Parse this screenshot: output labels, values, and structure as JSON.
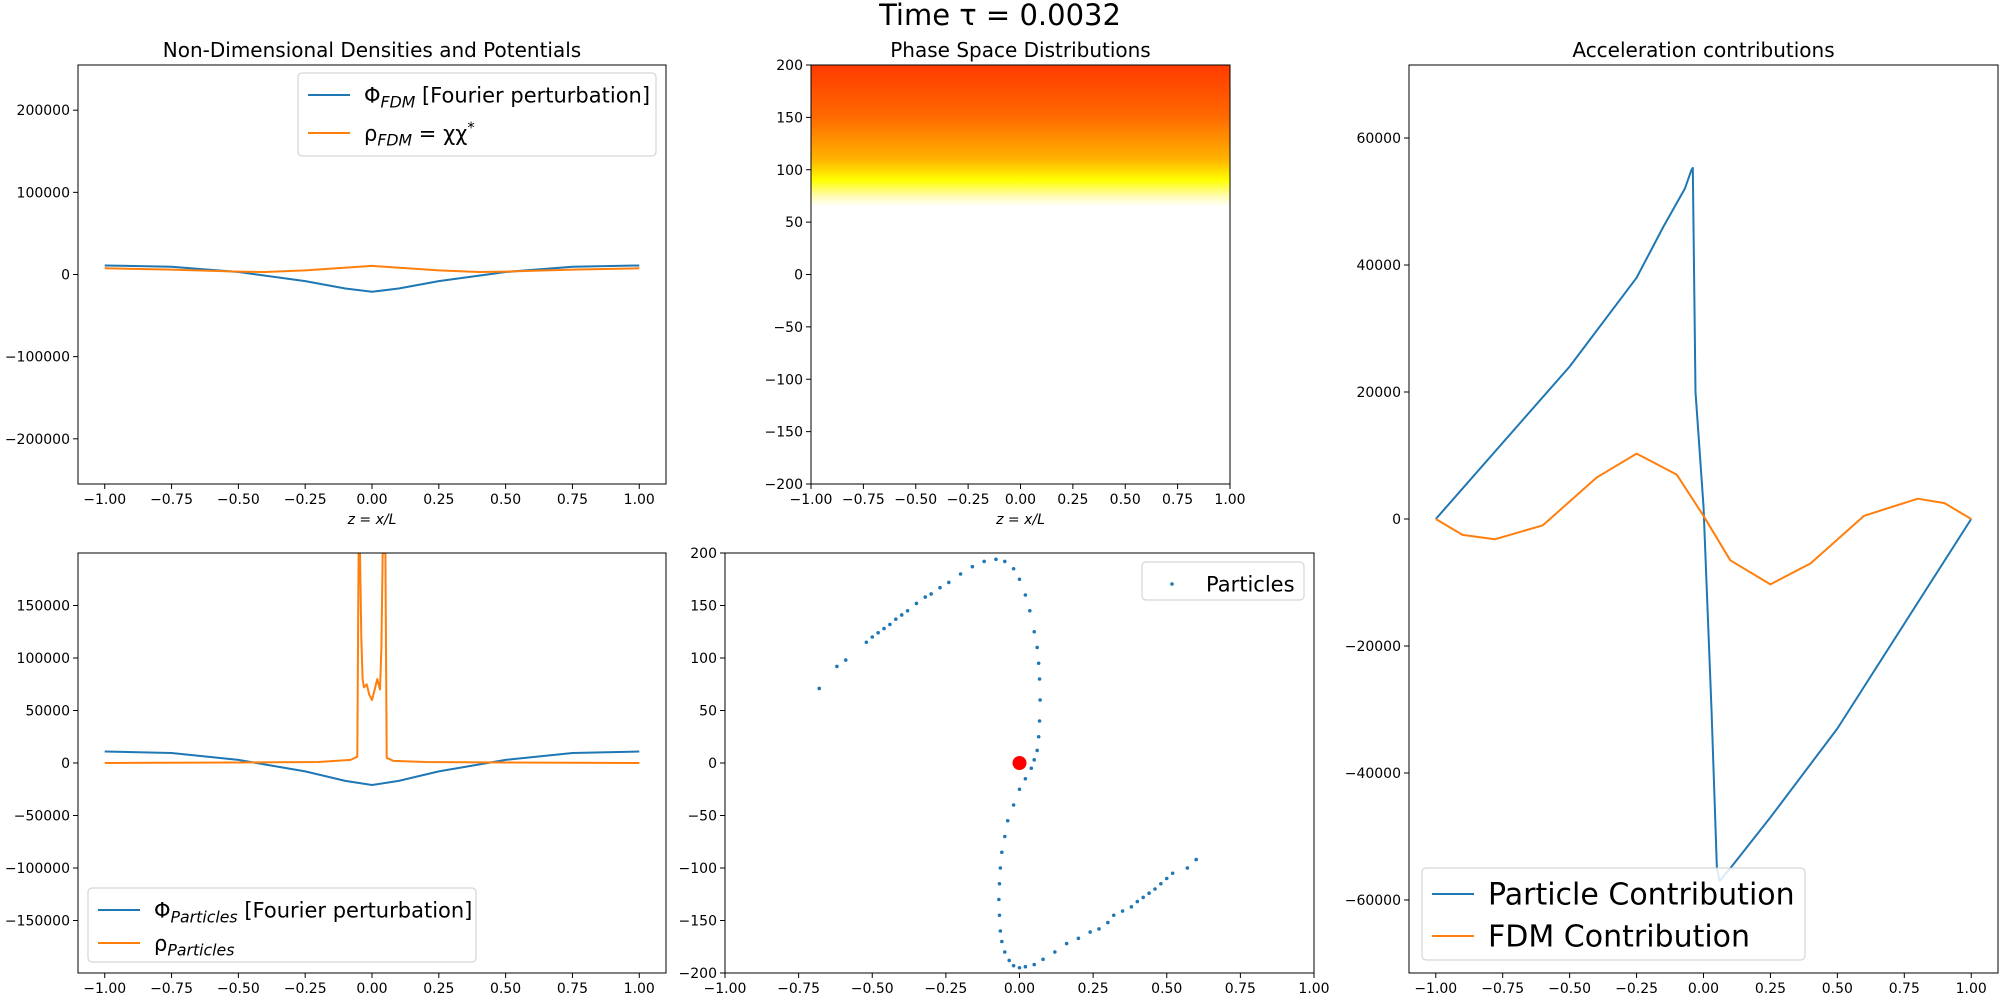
{
  "figure": {
    "suptitle": "Time τ = 0.0032"
  },
  "colors": {
    "blue": "#1f77b4",
    "orange": "#ff7f0e",
    "red": "#ff0000"
  },
  "chart_data": [
    {
      "id": "top_left",
      "type": "line",
      "title": "Non-Dimensional Densities and Potentials",
      "xlabel": "z = x/L",
      "ylabel": "",
      "xlim": [
        -1.1,
        1.1
      ],
      "ylim": [
        -255000,
        255000
      ],
      "xticks": [
        -1.0,
        -0.75,
        -0.5,
        -0.25,
        0.0,
        0.25,
        0.5,
        0.75,
        1.0
      ],
      "xtick_labels": [
        "−1.00",
        "−0.75",
        "−0.50",
        "−0.25",
        "0.00",
        "0.25",
        "0.50",
        "0.75",
        "1.00"
      ],
      "yticks": [
        -200000,
        -100000,
        0,
        100000,
        200000
      ],
      "ytick_labels": [
        "−200000",
        "−100000",
        "0",
        "100000",
        "200000"
      ],
      "legend_position": "top-right",
      "series": [
        {
          "name": "Φ_FDM [Fourier perturbation]",
          "color": "#1f77b4",
          "x": [
            -1.0,
            -0.75,
            -0.5,
            -0.25,
            -0.1,
            0.0,
            0.1,
            0.25,
            0.5,
            0.75,
            1.0
          ],
          "y": [
            11000,
            9500,
            3000,
            -8000,
            -17000,
            -21000,
            -17000,
            -8000,
            3000,
            9500,
            11000
          ]
        },
        {
          "name": "ρ_FDM = χχ*",
          "color": "#ff7f0e",
          "x": [
            -1.0,
            -0.75,
            -0.5,
            -0.4,
            -0.25,
            0.0,
            0.25,
            0.4,
            0.5,
            0.75,
            1.0
          ],
          "y": [
            7500,
            6000,
            3500,
            3000,
            5000,
            10500,
            5000,
            3000,
            3500,
            6000,
            7500
          ]
        }
      ]
    },
    {
      "id": "top_middle",
      "type": "heatmap",
      "title": "Phase Space Distributions",
      "xlabel": "z = x/L",
      "ylabel": "",
      "xlim": [
        -1.0,
        1.0
      ],
      "ylim": [
        -200,
        200
      ],
      "xticks": [
        -1.0,
        -0.75,
        -0.5,
        -0.25,
        0.0,
        0.25,
        0.5,
        0.75,
        1.0
      ],
      "xtick_labels": [
        "−1.00",
        "−0.75",
        "−0.50",
        "−0.25",
        "0.00",
        "0.25",
        "0.50",
        "0.75",
        "1.00"
      ],
      "yticks": [
        -200,
        -150,
        -100,
        -50,
        0,
        50,
        100,
        150,
        200
      ],
      "ytick_labels": [
        "−200",
        "−150",
        "−100",
        "−50",
        "0",
        "50",
        "100",
        "150",
        "200"
      ],
      "color_stops": [
        {
          "v": 200,
          "color": "#ff3a00"
        },
        {
          "v": 150,
          "color": "#ff6a00"
        },
        {
          "v": 110,
          "color": "#ffb300"
        },
        {
          "v": 90,
          "color": "#ffff00"
        },
        {
          "v": 75,
          "color": "#fffbb0"
        },
        {
          "v": 65,
          "color": "#ffffff"
        },
        {
          "v": -200,
          "color": "#ffffff"
        }
      ]
    },
    {
      "id": "right",
      "type": "line",
      "title": "Acceleration contributions",
      "xlabel": "",
      "ylabel": "",
      "xlim": [
        -1.1,
        1.1
      ],
      "ylim": [
        -71500,
        71500
      ],
      "xticks": [
        -1.0,
        -0.75,
        -0.5,
        -0.25,
        0.0,
        0.25,
        0.5,
        0.75,
        1.0
      ],
      "xtick_labels": [
        "−1.00",
        "−0.75",
        "−0.50",
        "−0.25",
        "0.00",
        "0.25",
        "0.50",
        "0.75",
        "1.00"
      ],
      "yticks": [
        -60000,
        -40000,
        -20000,
        0,
        20000,
        40000,
        60000
      ],
      "ytick_labels": [
        "−60000",
        "−40000",
        "−20000",
        "0",
        "20000",
        "40000",
        "60000"
      ],
      "legend_position": "bottom-left",
      "series": [
        {
          "name": "Particle Contribution",
          "color": "#1f77b4",
          "x": [
            -1.0,
            -0.5,
            -0.25,
            -0.15,
            -0.07,
            -0.045,
            -0.04,
            -0.03,
            0.0,
            0.03,
            0.05,
            0.06,
            0.1,
            0.25,
            0.5,
            1.0
          ],
          "y": [
            0,
            24000,
            38000,
            46000,
            52000,
            55000,
            55300,
            20000,
            2000,
            -30000,
            -55000,
            -57000,
            -55000,
            -47000,
            -33000,
            0
          ]
        },
        {
          "name": "FDM Contribution",
          "color": "#ff7f0e",
          "x": [
            -1.0,
            -0.9,
            -0.78,
            -0.6,
            -0.4,
            -0.25,
            -0.1,
            0.0,
            0.1,
            0.25,
            0.4,
            0.6,
            0.8,
            0.9,
            1.0
          ],
          "y": [
            0,
            -2500,
            -3200,
            -1000,
            6500,
            10300,
            7000,
            500,
            -6500,
            -10300,
            -7000,
            500,
            3200,
            2500,
            0
          ]
        }
      ]
    },
    {
      "id": "bottom_left",
      "type": "line",
      "title": "",
      "xlabel": "",
      "ylabel": "",
      "xlim": [
        -1.1,
        1.1
      ],
      "ylim": [
        -200000,
        200000
      ],
      "xticks": [
        -1.0,
        -0.75,
        -0.5,
        -0.25,
        0.0,
        0.25,
        0.5,
        0.75,
        1.0
      ],
      "xtick_labels": [
        "−1.00",
        "−0.75",
        "−0.50",
        "−0.25",
        "0.00",
        "0.25",
        "0.50",
        "0.75",
        "1.00"
      ],
      "yticks": [
        -150000,
        -100000,
        -50000,
        0,
        50000,
        100000,
        150000
      ],
      "ytick_labels": [
        "−150000",
        "−100000",
        "−50000",
        "0",
        "50000",
        "100000",
        "150000"
      ],
      "legend_position": "bottom-left",
      "series": [
        {
          "name": "Φ_Particles [Fourier perturbation]",
          "color": "#1f77b4",
          "x": [
            -1.0,
            -0.75,
            -0.5,
            -0.25,
            -0.1,
            0.0,
            0.1,
            0.25,
            0.5,
            0.75,
            1.0
          ],
          "y": [
            11000,
            9500,
            3000,
            -8000,
            -17000,
            -21000,
            -17000,
            -8000,
            3000,
            9500,
            11000
          ]
        },
        {
          "name": "ρ_Particles",
          "color": "#ff7f0e",
          "x": [
            -1.0,
            -0.5,
            -0.2,
            -0.08,
            -0.055,
            -0.05,
            -0.045,
            -0.04,
            -0.035,
            -0.03,
            -0.02,
            -0.01,
            0.0,
            0.01,
            0.02,
            0.03,
            0.035,
            0.04,
            0.045,
            0.05,
            0.055,
            0.08,
            0.2,
            0.5,
            1.0
          ],
          "y": [
            0,
            500,
            1000,
            3000,
            6000,
            200000,
            200000,
            120000,
            80000,
            72000,
            75000,
            65000,
            60000,
            70000,
            80000,
            70000,
            110000,
            200000,
            200000,
            200000,
            5000,
            2000,
            1000,
            500,
            0
          ]
        }
      ]
    },
    {
      "id": "bottom_middle",
      "type": "scatter",
      "title": "",
      "xlabel": "",
      "ylabel": "",
      "xlim": [
        -1.0,
        1.0
      ],
      "ylim": [
        -200,
        200
      ],
      "xticks": [
        -1.0,
        -0.75,
        -0.5,
        -0.25,
        0.0,
        0.25,
        0.5,
        0.75,
        1.0
      ],
      "xtick_labels": [
        "−1.00",
        "−0.75",
        "−0.50",
        "−0.25",
        "0.00",
        "0.25",
        "0.50",
        "0.75",
        "1.00"
      ],
      "yticks": [
        -200,
        -150,
        -100,
        -50,
        0,
        50,
        100,
        150,
        200
      ],
      "ytick_labels": [
        "−200",
        "−150",
        "−100",
        "−50",
        "0",
        "50",
        "100",
        "150",
        "200"
      ],
      "legend_position": "top-right",
      "series": [
        {
          "name": "Particles",
          "color": "#1f77b4",
          "x": [
            -0.68,
            -0.62,
            -0.59,
            -0.52,
            -0.5,
            -0.48,
            -0.46,
            -0.44,
            -0.42,
            -0.4,
            -0.38,
            -0.35,
            -0.32,
            -0.3,
            -0.27,
            -0.24,
            -0.2,
            -0.16,
            -0.12,
            -0.08,
            -0.05,
            -0.02,
            0.0,
            0.02,
            0.035,
            0.05,
            0.06,
            0.065,
            0.068,
            0.07,
            0.068,
            0.065,
            0.06,
            0.05,
            0.04,
            0.02,
            0.0,
            -0.02,
            -0.04,
            -0.05,
            -0.06,
            -0.065,
            -0.068,
            -0.07,
            -0.068,
            -0.065,
            -0.06,
            -0.05,
            -0.035,
            -0.02,
            0.0,
            0.02,
            0.05,
            0.08,
            0.12,
            0.16,
            0.2,
            0.24,
            0.27,
            0.3,
            0.32,
            0.35,
            0.38,
            0.4,
            0.42,
            0.44,
            0.46,
            0.48,
            0.5,
            0.52,
            0.57,
            0.6
          ],
          "y": [
            71,
            92,
            98,
            115,
            120,
            124,
            128,
            132,
            137,
            141,
            145,
            152,
            158,
            161,
            167,
            172,
            180,
            187,
            192,
            194,
            192,
            185,
            175,
            160,
            145,
            125,
            110,
            95,
            80,
            60,
            40,
            25,
            12,
            3,
            -5,
            -15,
            -25,
            -40,
            -55,
            -70,
            -85,
            -100,
            -115,
            -130,
            -145,
            -160,
            -170,
            -180,
            -188,
            -193,
            -195,
            -194,
            -192,
            -187,
            -180,
            -172,
            -167,
            -161,
            -158,
            -152,
            -145,
            -141,
            -137,
            -132,
            -128,
            -124,
            -120,
            -115,
            -110,
            -105,
            -100,
            -92
          ]
        },
        {
          "name": "",
          "color": "#ff0000",
          "x": [
            0.0
          ],
          "y": [
            0.0
          ]
        }
      ]
    }
  ]
}
